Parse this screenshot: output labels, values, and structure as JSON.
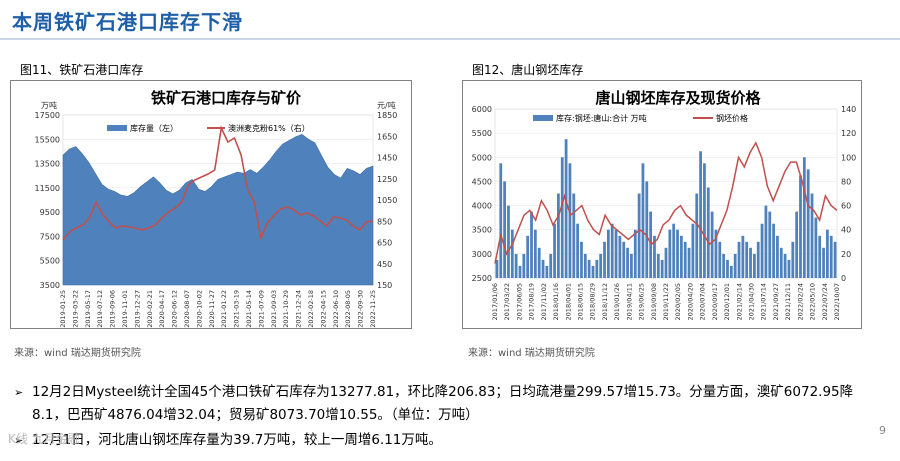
{
  "slide": {
    "title": "本周铁矿石港口库存下滑",
    "page_number": "9",
    "watermark": "K线 九月金融"
  },
  "figure_labels": [
    "图11、铁矿石港口库存",
    "图12、唐山钢坯库存"
  ],
  "sources": [
    "来源：wind    瑞达期货研究院",
    "来源：wind    瑞达期货研究院"
  ],
  "bullets": [
    {
      "line1": "12月2日Mysteel统计全国45个港口铁矿石库存为13277.81，环比降206.83；日均疏港量299.57增15.73。分量方面，澳矿6072.95降",
      "line2": "8.1，巴西矿4876.04增32.04；贸易矿8073.70增10.55。（单位：万吨）"
    },
    {
      "line1": "12月1日，河北唐山钢坯库存量为39.7万吨，较上一周增6.11万吨。"
    }
  ],
  "chart_data": [
    {
      "type": "area",
      "title": "铁矿石港口库存与矿价",
      "left_unit": "万吨",
      "right_unit": "元/吨",
      "ylim": [
        3500,
        17500
      ],
      "y_ticks": [
        "17500",
        "15500",
        "13500",
        "11500",
        "9500",
        "7500",
        "5500",
        "3500"
      ],
      "y2lim": [
        150,
        1850
      ],
      "y2_ticks": [
        "1850",
        "1650",
        "1450",
        "1250",
        "1050",
        "850",
        "650",
        "450",
        "150"
      ],
      "x_ticks": [
        "2019-01-25",
        "2019-03-22",
        "2019-05-17",
        "2019-07-12",
        "2019-09-06",
        "2019-11-01",
        "2019-12-27",
        "2020-02-21",
        "2020-04-17",
        "2020-06-12",
        "2020-08-07",
        "2020-10-02",
        "2020-11-27",
        "2021-01-22",
        "2021-03-19",
        "2021-05-14",
        "2021-07-09",
        "2021-09-03",
        "2021-10-29",
        "2021-12-24",
        "2022-02-18",
        "2022-04-15",
        "2022-06-10",
        "2022-08-05",
        "2022-09-30",
        "2022-11-25"
      ],
      "series": [
        {
          "name": "库存量（左）",
          "color": "#4f81bd",
          "values": [
            14200,
            14700,
            14900,
            14300,
            13600,
            12700,
            11800,
            11400,
            11200,
            10900,
            10800,
            11100,
            11600,
            12000,
            12400,
            11900,
            11300,
            11000,
            11300,
            11900,
            12200,
            11400,
            11200,
            11600,
            12200,
            12400,
            12600,
            12800,
            12700,
            13000,
            12700,
            13200,
            13800,
            14500,
            15100,
            15400,
            15700,
            15900,
            15500,
            15200,
            14200,
            13200,
            12600,
            12300,
            13100,
            12900,
            12600,
            13100,
            13300
          ]
        },
        {
          "name": "澳洲麦克粉61%（右）",
          "color": "#c0504d",
          "axis": "right",
          "values": [
            600,
            680,
            720,
            750,
            820,
            980,
            860,
            780,
            720,
            740,
            730,
            720,
            700,
            720,
            750,
            820,
            880,
            920,
            980,
            1150,
            1200,
            1230,
            1260,
            1300,
            1720,
            1580,
            1620,
            1450,
            1100,
            980,
            620,
            770,
            850,
            910,
            930,
            900,
            850,
            870,
            840,
            790,
            740,
            830,
            820,
            800,
            740,
            700,
            780,
            790
          ]
        }
      ]
    },
    {
      "type": "bar",
      "title": "唐山钢坯库存及现货价格",
      "ylim": [
        2500,
        6000
      ],
      "y_ticks": [
        "6000",
        "5500",
        "5000",
        "4500",
        "4000",
        "3500",
        "3000",
        "2500"
      ],
      "y2lim": [
        0,
        140
      ],
      "y2_ticks": [
        "140",
        "120",
        "100",
        "80",
        "60",
        "40",
        "20",
        "0"
      ],
      "x_ticks": [
        "2017/01/06",
        "2017/03/22",
        "2017/06/05",
        "2017/08/19",
        "2017/11/02",
        "2018/01/16",
        "2018/04/01",
        "2018/06/15",
        "2018/08/29",
        "2018/11/12",
        "2019/01/26",
        "2019/04/11",
        "2019/06/25",
        "2019/09/08",
        "2019/11/22",
        "2020/02/05",
        "2020/04/20",
        "2020/07/04",
        "2020/09/17",
        "2020/12/01",
        "2021/02/14",
        "2021/04/30",
        "2021/07/14",
        "2021/09/27",
        "2021/12/11",
        "2022/02/24",
        "2022/05/10",
        "2022/07/24",
        "2022/10/07"
      ],
      "series": [
        {
          "name": "库存:钢坯:唐山:合计  万吨",
          "color": "#4f81bd",
          "axis": "right",
          "values": [
            15,
            95,
            80,
            60,
            40,
            20,
            10,
            20,
            35,
            55,
            40,
            25,
            15,
            10,
            20,
            45,
            70,
            100,
            115,
            95,
            70,
            45,
            30,
            20,
            15,
            10,
            15,
            20,
            30,
            40,
            45,
            40,
            35,
            30,
            25,
            20,
            40,
            70,
            95,
            80,
            55,
            35,
            20,
            15,
            25,
            40,
            45,
            40,
            35,
            30,
            25,
            45,
            70,
            105,
            95,
            75,
            55,
            40,
            30,
            20,
            15,
            10,
            20,
            30,
            35,
            30,
            25,
            20,
            30,
            45,
            60,
            55,
            45,
            35,
            25,
            20,
            15,
            30,
            55,
            85,
            100,
            90,
            70,
            50,
            35,
            25,
            40,
            35,
            30
          ]
        },
        {
          "name": "钢坯价格",
          "color": "#c0504d",
          "values": [
            2800,
            3400,
            3000,
            3200,
            3500,
            3800,
            3900,
            3700,
            4100,
            3900,
            3600,
            3800,
            4200,
            3800,
            3900,
            4000,
            3700,
            3500,
            3400,
            3800,
            3600,
            3500,
            3400,
            3300,
            3400,
            3500,
            3400,
            3200,
            3300,
            3600,
            3700,
            3900,
            4000,
            3800,
            3700,
            3600,
            3400,
            3200,
            3300,
            3600,
            3900,
            4400,
            5000,
            4800,
            5100,
            5300,
            5000,
            4400,
            4100,
            4400,
            4700,
            4900,
            4900,
            4500,
            4000,
            3900,
            3700,
            4200,
            4000,
            3900
          ]
        }
      ]
    }
  ]
}
